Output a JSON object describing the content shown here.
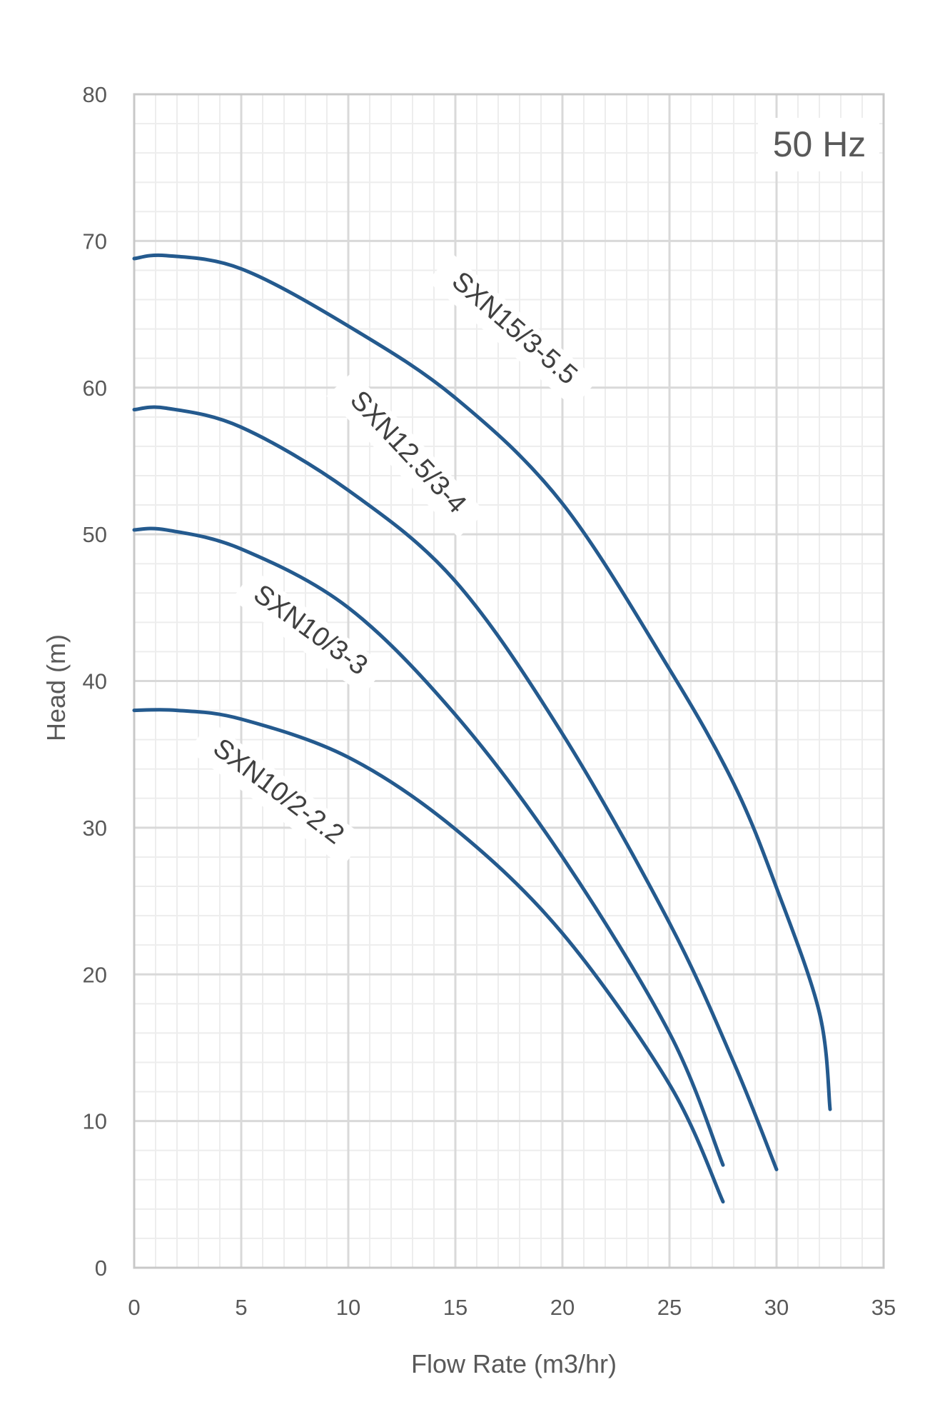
{
  "chart_data": {
    "type": "line",
    "title": "",
    "annotation": "50 Hz",
    "xlabel": "Flow Rate (m3/hr)",
    "ylabel": "Head (m)",
    "xlim": [
      0,
      35
    ],
    "ylim": [
      0,
      80
    ],
    "x_ticks": [
      0,
      5,
      10,
      15,
      20,
      25,
      30,
      35
    ],
    "y_ticks": [
      0,
      10,
      20,
      30,
      40,
      50,
      60,
      70,
      80
    ],
    "grid": true,
    "legend": "none (curves labeled inline)",
    "line_color": "#245a8e",
    "series": [
      {
        "name": "SXN15/3-5.5",
        "points": [
          [
            0,
            68.8
          ],
          [
            1.5,
            69.0
          ],
          [
            5,
            68.1
          ],
          [
            10,
            64.2
          ],
          [
            15,
            59.3
          ],
          [
            20,
            52.1
          ],
          [
            25,
            40.8
          ],
          [
            28,
            33.0
          ],
          [
            30,
            25.9
          ],
          [
            32,
            17.4
          ],
          [
            32.5,
            10.8
          ]
        ],
        "label_pos": [
          17.5,
          63.6
        ],
        "label_angle": 41
      },
      {
        "name": "SXN12.5/3-4",
        "points": [
          [
            0,
            58.5
          ],
          [
            1.5,
            58.6
          ],
          [
            5,
            57.3
          ],
          [
            10,
            53.0
          ],
          [
            15,
            46.8
          ],
          [
            20,
            36.4
          ],
          [
            25,
            23.5
          ],
          [
            28,
            14.0
          ],
          [
            30,
            6.7
          ]
        ],
        "label_pos": [
          12.5,
          55.2
        ],
        "label_angle": 47
      },
      {
        "name": "SXN10/3-3",
        "points": [
          [
            0,
            50.3
          ],
          [
            1.5,
            50.3
          ],
          [
            5,
            49.0
          ],
          [
            10,
            45.0
          ],
          [
            15,
            37.7
          ],
          [
            20,
            28.0
          ],
          [
            25,
            16.0
          ],
          [
            27.5,
            7.0
          ]
        ],
        "label_pos": [
          8.0,
          43.0
        ],
        "label_angle": 36
      },
      {
        "name": "SXN10/2-2.2",
        "points": [
          [
            0,
            38.0
          ],
          [
            2,
            38.0
          ],
          [
            5,
            37.4
          ],
          [
            10,
            34.8
          ],
          [
            15,
            29.9
          ],
          [
            20,
            22.8
          ],
          [
            25,
            12.5
          ],
          [
            27.5,
            4.5
          ]
        ],
        "label_pos": [
          6.5,
          32.0
        ],
        "label_angle": 37
      }
    ]
  }
}
